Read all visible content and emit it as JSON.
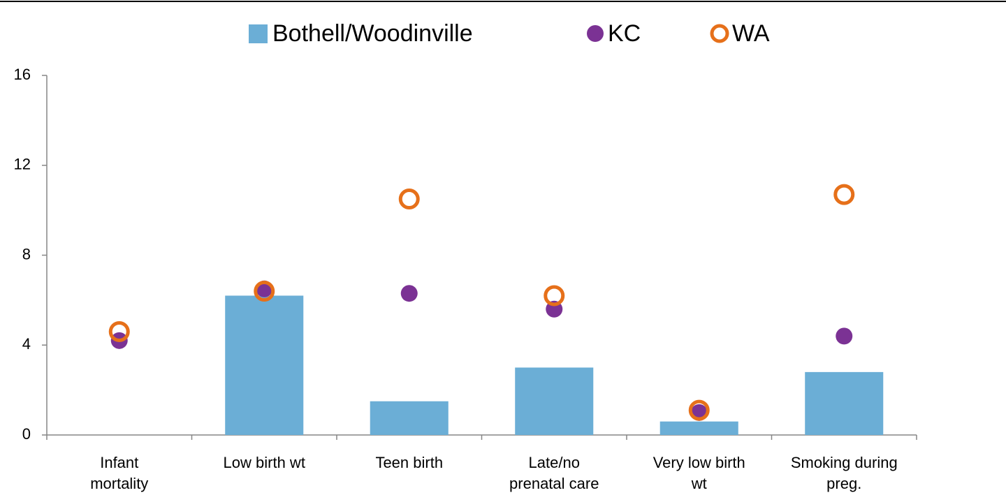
{
  "chart_data": {
    "type": "bar",
    "categories": [
      "Infant\nmortality",
      "Low birth wt",
      "Teen birth",
      "Late/no\nprenatal care",
      "Very low birth\nwt",
      "Smoking during\npreg."
    ],
    "series": [
      {
        "name": "Bothell/Woodinville",
        "type": "bar",
        "color": "#6baed6",
        "values": [
          null,
          6.2,
          1.5,
          3.0,
          0.6,
          2.8
        ]
      },
      {
        "name": "KC",
        "type": "dot",
        "color": "#7b3294",
        "values": [
          4.2,
          6.5,
          6.3,
          5.6,
          1.0,
          4.4
        ]
      },
      {
        "name": "WA",
        "type": "ring",
        "color": "#e6701a",
        "values": [
          4.6,
          6.4,
          10.5,
          6.2,
          1.1,
          10.7
        ]
      }
    ],
    "ylim": [
      0,
      16
    ],
    "yticks": [
      0,
      4,
      8,
      12,
      16
    ],
    "legend": "top"
  }
}
